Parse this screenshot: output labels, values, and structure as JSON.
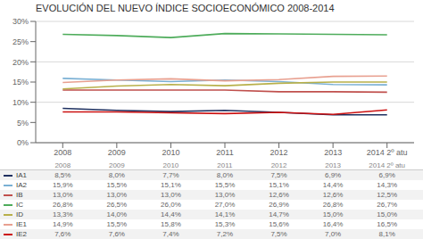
{
  "chart_data": {
    "type": "line",
    "title": "EVOLUCIÓN DEL NUEVO ÍNDICE SOCIOECONÓMICO 2008-2014",
    "categories": [
      "2008",
      "2009",
      "2010",
      "2011",
      "2012",
      "2013",
      "2014 2º atu"
    ],
    "series": [
      {
        "name": "IA1",
        "color": "#1f3060",
        "values": [
          8.5,
          8.0,
          7.7,
          8.0,
          7.5,
          6.9,
          6.9
        ],
        "value_labels": [
          "8,5%",
          "8,0%",
          "7,7%",
          "8,0%",
          "7,5%",
          "6,9%",
          "6,9%"
        ]
      },
      {
        "name": "IA2",
        "color": "#7ab0d4",
        "values": [
          15.9,
          15.5,
          15.1,
          15.5,
          15.1,
          14.4,
          14.3
        ],
        "value_labels": [
          "15,9%",
          "15,5%",
          "15,1%",
          "15,5%",
          "15,1%",
          "14,4%",
          "14,3%"
        ]
      },
      {
        "name": "IB",
        "color": "#c0504d",
        "values": [
          13.0,
          13.0,
          13.0,
          13.0,
          12.6,
          12.6,
          12.5
        ],
        "value_labels": [
          "13,0%",
          "13,0%",
          "13,0%",
          "13,0%",
          "12,6%",
          "12,6%",
          "12,5%"
        ]
      },
      {
        "name": "IC",
        "color": "#4eac5b",
        "values": [
          26.8,
          26.5,
          26.0,
          27.0,
          26.9,
          26.8,
          26.7
        ],
        "value_labels": [
          "26,8%",
          "26,5%",
          "26,0%",
          "27,0%",
          "26,9%",
          "26,8%",
          "26,7%"
        ]
      },
      {
        "name": "ID",
        "color": "#b8b04a",
        "values": [
          13.3,
          14.0,
          14.4,
          14.1,
          14.7,
          15.0,
          15.0
        ],
        "value_labels": [
          "13,3%",
          "14,0%",
          "14,4%",
          "14,1%",
          "14,7%",
          "15,0%",
          "15,0%"
        ]
      },
      {
        "name": "IE1",
        "color": "#e8a090",
        "values": [
          14.9,
          15.5,
          15.8,
          15.3,
          15.6,
          16.4,
          16.5
        ],
        "value_labels": [
          "14,9%",
          "15,5%",
          "15,8%",
          "15,3%",
          "15,6%",
          "16,4%",
          "16,5%"
        ]
      },
      {
        "name": "IE2",
        "color": "#cc1111",
        "values": [
          7.6,
          7.6,
          7.4,
          7.2,
          7.5,
          7.0,
          8.1
        ],
        "value_labels": [
          "7,6%",
          "7,6%",
          "7,4%",
          "7,2%",
          "7,5%",
          "7,0%",
          "8,1%"
        ]
      }
    ],
    "ylim": [
      0,
      30
    ],
    "yticks": [
      {
        "value": 0,
        "label": "0%"
      },
      {
        "value": 5,
        "label": "5%"
      },
      {
        "value": 10,
        "label": "10%"
      },
      {
        "value": 15,
        "label": "15%"
      },
      {
        "value": 20,
        "label": "20%"
      },
      {
        "value": 25,
        "label": "25%"
      },
      {
        "value": 30,
        "label": "30%"
      }
    ],
    "grid": true
  }
}
